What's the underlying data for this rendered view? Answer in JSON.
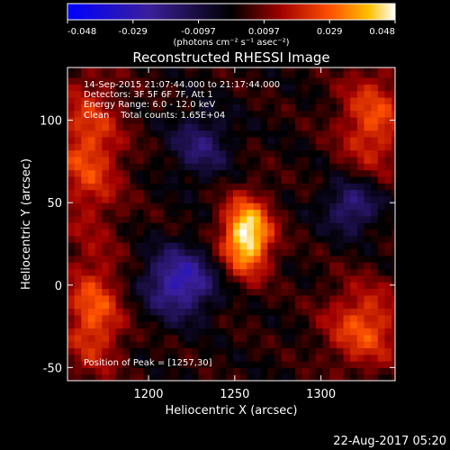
{
  "chart_data": {
    "type": "heatmap",
    "title": "Reconstructed RHESSI Image",
    "xlabel": "Heliocentric X (arcsec)",
    "ylabel": "Heliocentric Y (arcsec)",
    "xlim": [
      1153,
      1343
    ],
    "ylim": [
      -58,
      132
    ],
    "x_ticks": [
      1200,
      1250,
      1300
    ],
    "y_ticks": [
      -50,
      0,
      50,
      100
    ],
    "colorbar": {
      "ticks": [
        "-0.048",
        "-0.029",
        "-0.0097",
        "0.0097",
        "0.029",
        "0.048"
      ],
      "range": [
        -0.048,
        0.048
      ],
      "units": "(photons cm⁻² s⁻¹ asec⁻²)"
    },
    "annotations": [
      "14-Sep-2015 21:07:44.000 to 21:17:44.000",
      "Detectors: 3F 5F 6F 7F, Att 1",
      "Energy Range: 6.0 - 12.0 keV",
      "Clean    Total counts: 1.65E+04"
    ],
    "peak_label": "Position of Peak = [1257,30]",
    "peak": [
      1257,
      30
    ],
    "sources": [
      {
        "x": 1257,
        "y": 30,
        "amp": 0.048,
        "sx": 10,
        "sy": 16
      },
      {
        "x": 1165,
        "y": 82,
        "amp": 0.024,
        "sx": 14,
        "sy": 32
      },
      {
        "x": 1168,
        "y": -18,
        "amp": 0.026,
        "sx": 12,
        "sy": 24
      },
      {
        "x": 1330,
        "y": 100,
        "amp": 0.024,
        "sx": 14,
        "sy": 22
      },
      {
        "x": 1325,
        "y": -25,
        "amp": 0.025,
        "sx": 16,
        "sy": 18
      },
      {
        "x": 1218,
        "y": 2,
        "amp": -0.032,
        "sx": 14,
        "sy": 14
      },
      {
        "x": 1230,
        "y": 85,
        "amp": -0.018,
        "sx": 12,
        "sy": 14
      },
      {
        "x": 1318,
        "y": 48,
        "amp": -0.022,
        "sx": 11,
        "sy": 11
      }
    ]
  },
  "footer": {
    "timestamp": "22-Aug-2017 05:20"
  }
}
